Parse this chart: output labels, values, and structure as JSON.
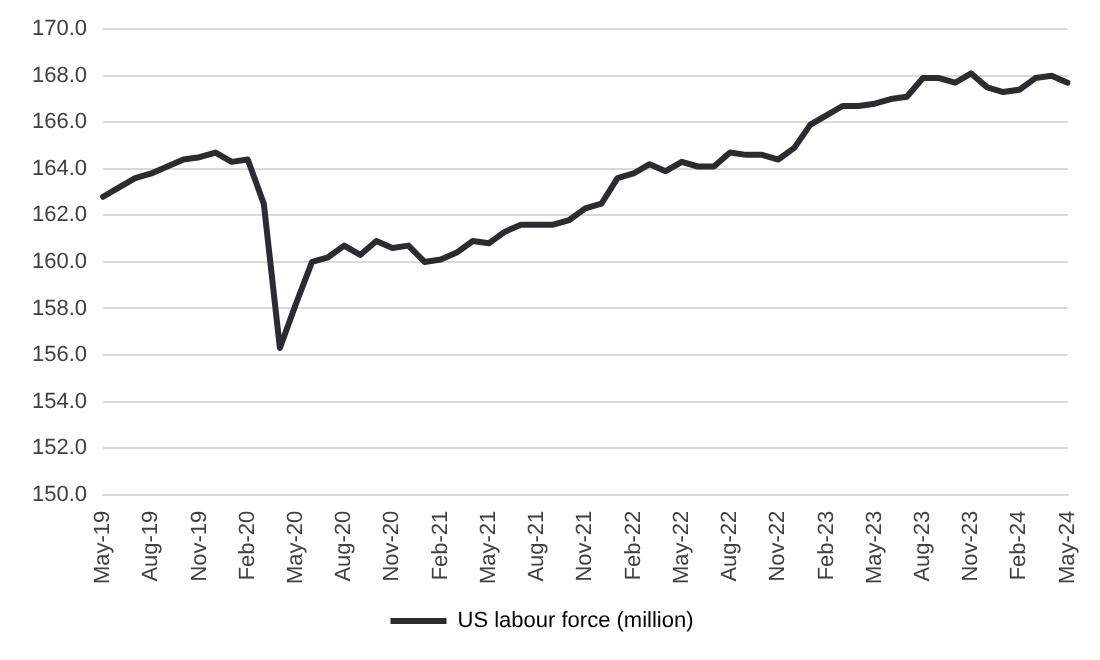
{
  "chart_data": {
    "type": "line",
    "categories": [
      "May-19",
      null,
      null,
      "Aug-19",
      null,
      null,
      "Nov-19",
      null,
      null,
      "Feb-20",
      null,
      null,
      "May-20",
      null,
      null,
      "Aug-20",
      null,
      null,
      "Nov-20",
      null,
      null,
      "Feb-21",
      null,
      null,
      "May-21",
      null,
      null,
      "Aug-21",
      null,
      null,
      "Nov-21",
      null,
      null,
      "Feb-22",
      null,
      null,
      "May-22",
      null,
      null,
      "Aug-22",
      null,
      null,
      "Nov-22",
      null,
      null,
      "Feb-23",
      null,
      null,
      "May-23",
      null,
      null,
      "Aug-23",
      null,
      null,
      "Nov-23",
      null,
      null,
      "Feb-24",
      null,
      null,
      "May-24"
    ],
    "series": [
      {
        "name": "US labour force (million)",
        "color": "#2b2b33",
        "values": [
          162.8,
          163.2,
          163.6,
          163.8,
          164.1,
          164.4,
          164.5,
          164.7,
          164.3,
          164.4,
          162.5,
          156.3,
          158.2,
          160.0,
          160.2,
          160.7,
          160.3,
          160.9,
          160.6,
          160.7,
          160.0,
          160.1,
          160.4,
          160.9,
          160.8,
          161.3,
          161.6,
          161.6,
          161.6,
          161.8,
          162.3,
          162.5,
          163.6,
          163.8,
          164.2,
          163.9,
          164.3,
          164.1,
          164.1,
          164.7,
          164.6,
          164.6,
          164.4,
          164.9,
          165.9,
          166.3,
          166.7,
          166.7,
          166.8,
          167.0,
          167.1,
          167.9,
          167.9,
          167.7,
          168.1,
          167.5,
          167.3,
          167.4,
          167.9,
          168.0,
          167.7
        ]
      }
    ],
    "ylim": [
      150,
      170
    ],
    "yticks": [
      {
        "value": 150,
        "label": "150.0"
      },
      {
        "value": 152,
        "label": "152.0"
      },
      {
        "value": 154,
        "label": "154.0"
      },
      {
        "value": 156,
        "label": "156.0"
      },
      {
        "value": 158,
        "label": "158.0"
      },
      {
        "value": 160,
        "label": "160.0"
      },
      {
        "value": 162,
        "label": "162.0"
      },
      {
        "value": 164,
        "label": "164.0"
      },
      {
        "value": 166,
        "label": "166.0"
      },
      {
        "value": 168,
        "label": "168.0"
      },
      {
        "value": 170,
        "label": "170.0"
      }
    ],
    "grid": "y",
    "legend": "bottom",
    "marker": "none",
    "line_style": "solid"
  }
}
